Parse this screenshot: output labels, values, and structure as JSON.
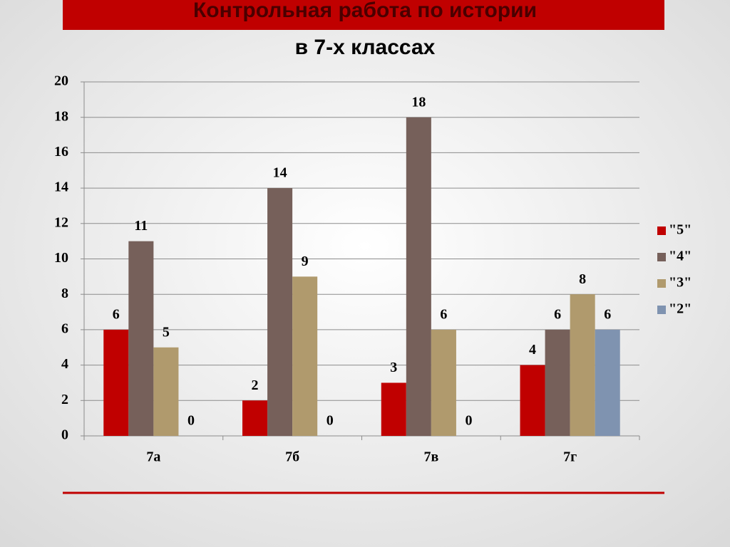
{
  "chart_data": {
    "type": "bar",
    "title": "Контрольная работа по истории",
    "subtitle": "в 7-х классах",
    "categories": [
      "7а",
      "7б",
      "7в",
      "7г"
    ],
    "series": [
      {
        "name": "\"5\"",
        "color": "#c00000",
        "values": [
          6,
          2,
          3,
          4
        ]
      },
      {
        "name": "\"4\"",
        "color": "#76605a",
        "values": [
          11,
          14,
          18,
          6
        ]
      },
      {
        "name": "\"3\"",
        "color": "#b09a6d",
        "values": [
          5,
          9,
          6,
          8
        ]
      },
      {
        "name": "\"2\"",
        "color": "#7f93b0",
        "values": [
          0,
          0,
          0,
          6
        ]
      }
    ],
    "ylim": [
      0,
      20
    ],
    "yticks": [
      0,
      2,
      4,
      6,
      8,
      10,
      12,
      14,
      16,
      18,
      20
    ],
    "grid": true,
    "legend": "right"
  }
}
